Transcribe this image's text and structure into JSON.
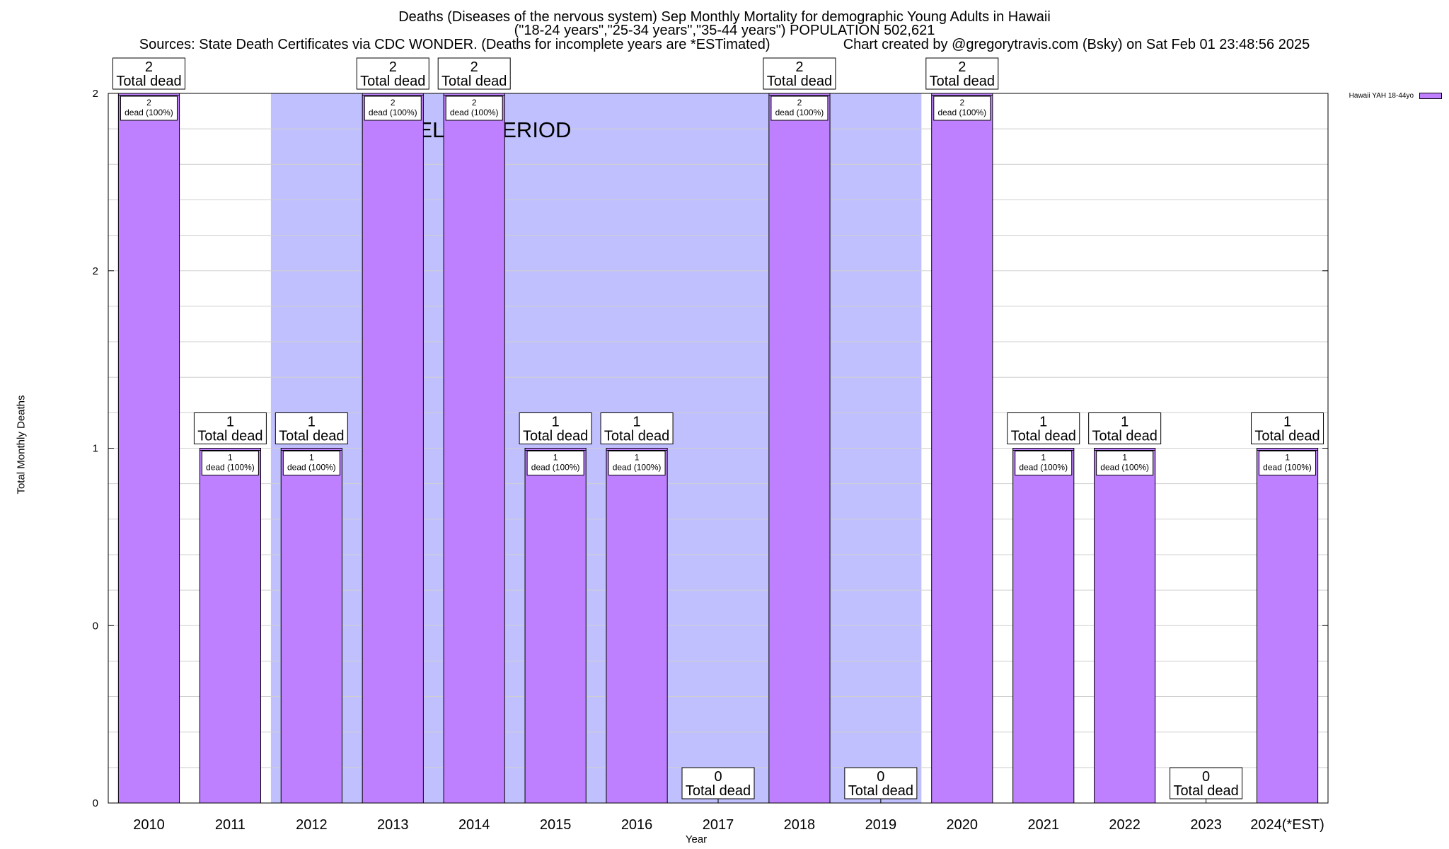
{
  "chart_data": {
    "type": "bar",
    "title": "Deaths (Diseases of the nervous system) Sep Monthly Mortality for demographic Young Adults in Hawaii",
    "subtitle": "(\"18-24 years\",\"25-34 years\",\"35-44 years\") POPULATION 502,621",
    "sources": "Sources: State Death Certificates via CDC WONDER. (Deaths for incomplete years are *ESTimated)",
    "credit": "Chart created by @gregorytravis.com (Bsky) on Sat Feb 01 23:48:56 2025",
    "xlabel": "Year",
    "ylabel": "Total Monthly Deaths",
    "categories": [
      "2010",
      "2011",
      "2012",
      "2013",
      "2014",
      "2015",
      "2016",
      "2017",
      "2018",
      "2019",
      "2020",
      "2021",
      "2022",
      "2023",
      "2024(*EST)"
    ],
    "series": [
      {
        "name": "Hawaii YAH 18-44yo",
        "color": "#bf80ff",
        "values": [
          2,
          1,
          1,
          2,
          2,
          1,
          1,
          0,
          2,
          0,
          2,
          1,
          1,
          0,
          1
        ]
      }
    ],
    "ylim": [
      0,
      2
    ],
    "y_tick_labels": [
      "0",
      "0",
      "1",
      "2",
      "2"
    ],
    "top_label_suffix": "Total dead",
    "inner_label_suffix": "dead (100%)",
    "baseline": {
      "label": "BASELINE PERIOD",
      "from": "2012",
      "to": "2019",
      "color": "#c0c0ff"
    },
    "grid": true,
    "legend_position": "top-right"
  }
}
